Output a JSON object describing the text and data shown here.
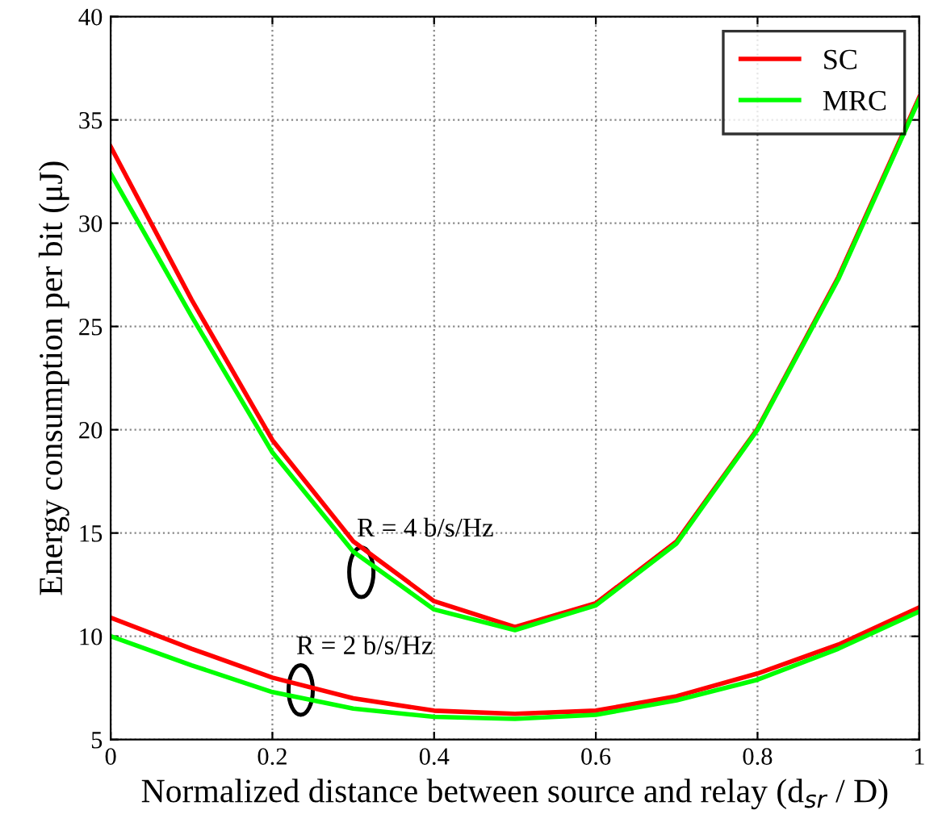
{
  "chart_data": {
    "type": "line",
    "xlabel": "Normalized distance between source and relay (d$_{sr}$ / D)",
    "ylabel": "Energy consumption per bit (μJ)",
    "xlim": [
      0,
      1
    ],
    "ylim": [
      5,
      40
    ],
    "xticks": [
      0,
      0.2,
      0.4,
      0.6,
      0.8,
      1
    ],
    "yticks": [
      5,
      10,
      15,
      20,
      25,
      30,
      35,
      40
    ],
    "grid": true,
    "legend": "top right",
    "line_style": "solid",
    "marker": "none",
    "x": [
      0,
      0.1,
      0.2,
      0.3,
      0.4,
      0.5,
      0.6,
      0.7,
      0.8,
      0.9,
      1
    ],
    "series": [
      {
        "name": "SC",
        "color": "#ff0000",
        "values": [
          33.7,
          26.3,
          19.5,
          14.6,
          11.7,
          10.45,
          11.6,
          14.6,
          20.05,
          27.4,
          36.1
        ]
      },
      {
        "name": "MRC",
        "color": "#00ff00",
        "values": [
          32.4,
          25.5,
          18.9,
          14.1,
          11.3,
          10.3,
          11.5,
          14.5,
          20.0,
          27.3,
          36.0
        ]
      },
      {
        "color": "#ff0000",
        "values": [
          10.9,
          9.4,
          8.0,
          7.0,
          6.4,
          6.25,
          6.4,
          7.1,
          8.2,
          9.6,
          11.4
        ]
      },
      {
        "color": "#00ff00",
        "values": [
          10.0,
          8.6,
          7.3,
          6.5,
          6.1,
          6.0,
          6.2,
          6.9,
          7.9,
          9.4,
          11.2
        ]
      }
    ],
    "annotations": [
      {
        "text": "R = 4 b/s/Hz",
        "x": 0.31,
        "y": 13.1
      },
      {
        "text": "R = 2 b/s/Hz",
        "x": 0.235,
        "y": 7.4
      }
    ]
  }
}
